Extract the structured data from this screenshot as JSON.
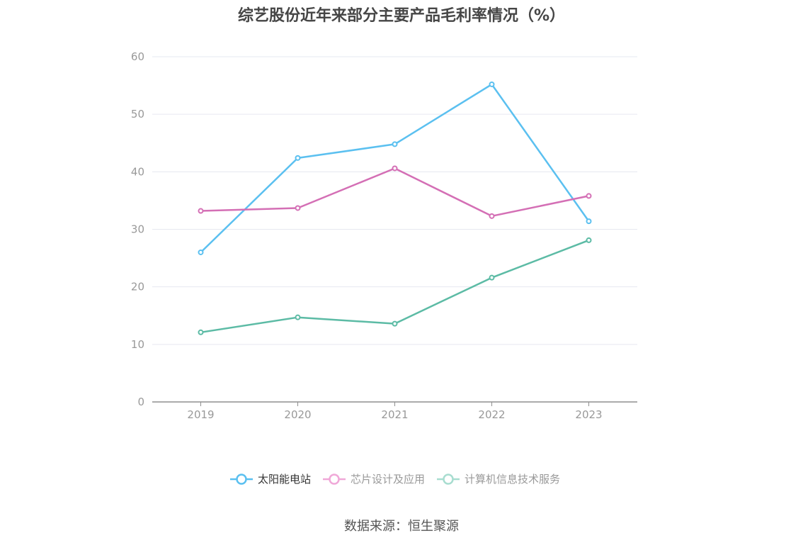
{
  "chart_data": {
    "type": "line",
    "title": "综艺股份近年来部分主要产品毛利率情况（%）",
    "x": [
      "2019",
      "2020",
      "2021",
      "2022",
      "2023"
    ],
    "ylim": [
      0,
      60
    ],
    "yticks": [
      0,
      10,
      20,
      30,
      40,
      50,
      60
    ],
    "grid": true,
    "legend_position": "bottom",
    "series": [
      {
        "name": "太阳能电站",
        "color": "#5bc0f0",
        "values": [
          26.0,
          42.4,
          44.8,
          55.2,
          31.4
        ]
      },
      {
        "name": "芯片设计及应用",
        "color": "#d46fb5",
        "values": [
          33.2,
          33.7,
          40.6,
          32.3,
          35.8
        ]
      },
      {
        "name": "计算机信息技术服务",
        "color": "#5cbba5",
        "values": [
          12.1,
          14.7,
          13.6,
          21.6,
          28.1
        ]
      }
    ]
  },
  "source": "数据来源：恒生聚源"
}
